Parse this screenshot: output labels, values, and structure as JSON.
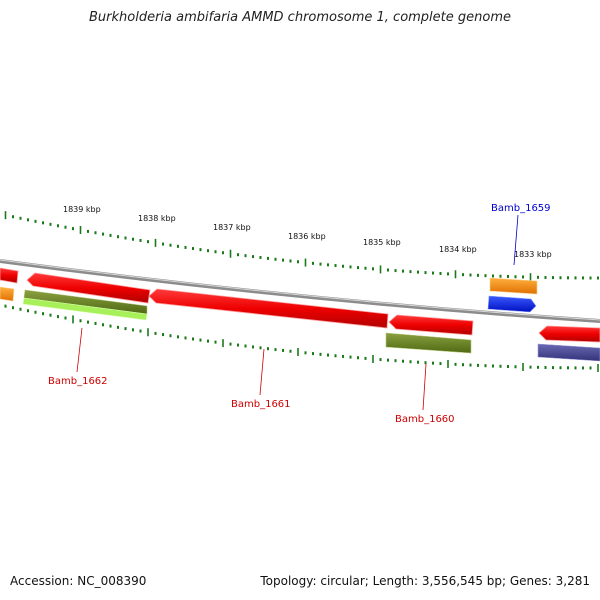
{
  "title": "Burkholderia ambifaria AMMD chromosome 1, complete genome",
  "footer": {
    "accession": "Accession: NC_008390",
    "summary": "Topology: circular; Length: 3,556,545 bp; Genes: 3,281"
  },
  "colors": {
    "tick": "#1a7a1a",
    "backbone": "#8c8c8c",
    "label_red": "#cc0000",
    "label_blue": "#0000cc"
  },
  "kbp_ticks": [
    "1839 kbp",
    "1838 kbp",
    "1837 kbp",
    "1836 kbp",
    "1835 kbp",
    "1834 kbp",
    "1833 kbp"
  ],
  "gene_labels": [
    {
      "name": "Bamb_1662",
      "color": "red"
    },
    {
      "name": "Bamb_1661",
      "color": "red"
    },
    {
      "name": "Bamb_1660",
      "color": "red"
    },
    {
      "name": "Bamb_1659",
      "color": "blue"
    }
  ]
}
